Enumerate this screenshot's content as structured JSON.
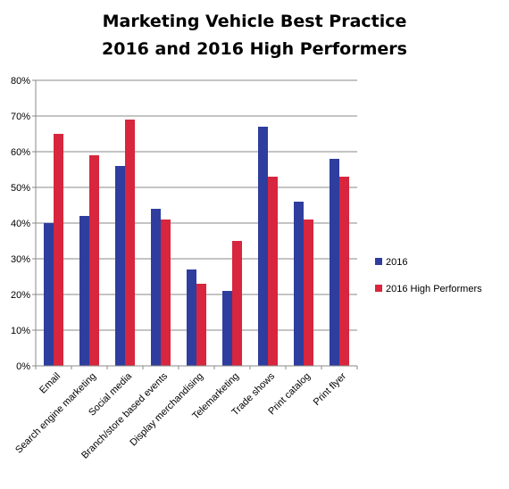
{
  "chart_data": {
    "type": "bar",
    "title_lines": [
      "Marketing Vehicle Best Practice",
      "2016 and 2016 High Performers"
    ],
    "categories": [
      "Email",
      "Search engine marketing",
      "Social media",
      "Branch/store based events",
      "Display merchandising",
      "Telemarketing",
      "Trade shows",
      "Print catalog",
      "Print flyer"
    ],
    "series": [
      {
        "name": "2016",
        "color": "#2E3D9E",
        "values": [
          40,
          42,
          56,
          44,
          27,
          21,
          67,
          46,
          58
        ]
      },
      {
        "name": "2016 High Performers",
        "color": "#D7263D",
        "values": [
          65,
          59,
          69,
          41,
          23,
          35,
          53,
          41,
          53
        ]
      }
    ],
    "yticks": [
      "0%",
      "10%",
      "20%",
      "30%",
      "40%",
      "50%",
      "60%",
      "70%",
      "80%"
    ],
    "ylim": [
      0,
      80
    ],
    "grid": true,
    "legend": "right"
  }
}
